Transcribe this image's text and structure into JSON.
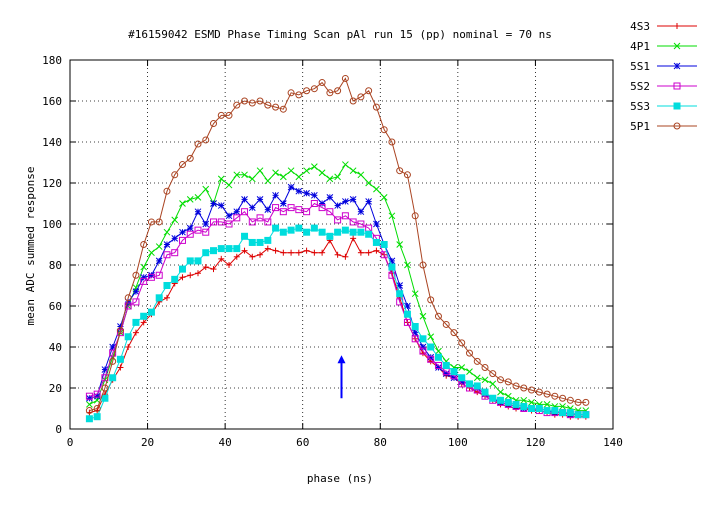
{
  "chart_data": {
    "type": "line",
    "title": "#16159042 ESMD Phase Timing Scan pAl run 15 (pp) nominal = 70 ns",
    "xlabel": "phase (ns)",
    "ylabel": "mean ADC summed response",
    "xlim": [
      0,
      140
    ],
    "ylim": [
      0,
      180
    ],
    "xticks": [
      0,
      20,
      40,
      60,
      80,
      100,
      120,
      140
    ],
    "yticks": [
      0,
      20,
      40,
      60,
      80,
      100,
      120,
      140,
      160,
      180
    ],
    "grid": true,
    "legend_position": "outside-top-right",
    "annotation": {
      "type": "arrow",
      "x": 70,
      "y_from": 15,
      "y_to": 36,
      "color": "#0000ff"
    },
    "x": [
      5,
      7,
      9,
      11,
      13,
      15,
      17,
      19,
      21,
      23,
      25,
      27,
      29,
      31,
      33,
      35,
      37,
      39,
      41,
      43,
      45,
      47,
      49,
      51,
      53,
      55,
      57,
      59,
      61,
      63,
      65,
      67,
      69,
      71,
      73,
      75,
      77,
      79,
      81,
      83,
      85,
      87,
      89,
      91,
      93,
      95,
      97,
      99,
      101,
      103,
      105,
      107,
      109,
      111,
      113,
      115,
      117,
      119,
      121,
      123,
      125,
      127,
      129,
      131,
      133
    ],
    "series": [
      {
        "name": "4S3",
        "marker": "plus",
        "color": "#dd0000",
        "values": [
          8,
          9,
          17,
          24,
          30,
          40,
          47,
          52,
          56,
          62,
          64,
          71,
          74,
          75,
          76,
          79,
          78,
          83,
          80,
          84,
          87,
          84,
          85,
          88,
          87,
          86,
          86,
          86,
          87,
          86,
          86,
          92,
          85,
          84,
          93,
          86,
          86,
          87,
          85,
          76,
          64,
          52,
          44,
          37,
          33,
          30,
          26,
          25,
          22,
          20,
          18,
          16,
          14,
          12,
          11,
          10,
          10,
          9,
          9,
          8,
          7,
          7,
          6,
          6,
          6
        ]
      },
      {
        "name": "4P1",
        "marker": "x",
        "color": "#00dd00",
        "values": [
          12,
          14,
          24,
          35,
          47,
          60,
          69,
          79,
          86,
          89,
          96,
          102,
          110,
          112,
          113,
          117,
          110,
          122,
          119,
          124,
          124,
          122,
          126,
          121,
          125,
          123,
          126,
          123,
          126,
          128,
          125,
          122,
          123,
          129,
          126,
          124,
          120,
          117,
          113,
          104,
          90,
          80,
          66,
          55,
          45,
          38,
          33,
          30,
          30,
          28,
          25,
          24,
          22,
          18,
          16,
          14,
          14,
          13,
          12,
          12,
          11,
          11,
          10,
          9,
          9
        ]
      },
      {
        "name": "5S1",
        "marker": "star",
        "color": "#0000dd",
        "values": [
          15,
          16,
          29,
          40,
          50,
          62,
          67,
          74,
          75,
          82,
          90,
          93,
          96,
          98,
          106,
          100,
          110,
          109,
          104,
          106,
          112,
          108,
          112,
          107,
          114,
          110,
          118,
          116,
          115,
          114,
          110,
          113,
          109,
          111,
          112,
          106,
          111,
          100,
          90,
          82,
          70,
          60,
          47,
          40,
          35,
          30,
          27,
          25,
          23,
          22,
          20,
          17,
          15,
          13,
          12,
          11,
          10,
          10,
          10,
          9,
          8,
          8,
          7,
          7,
          7
        ]
      },
      {
        "name": "5S2",
        "marker": "box",
        "color": "#cc00cc",
        "values": [
          16,
          17,
          25,
          37,
          47,
          60,
          62,
          72,
          74,
          75,
          85,
          86,
          92,
          95,
          97,
          96,
          101,
          101,
          100,
          103,
          106,
          101,
          103,
          101,
          108,
          106,
          108,
          107,
          106,
          110,
          108,
          106,
          102,
          104,
          101,
          100,
          98,
          93,
          85,
          75,
          62,
          52,
          44,
          38,
          34,
          31,
          28,
          26,
          22,
          20,
          19,
          16,
          14,
          13,
          12,
          11,
          10,
          10,
          9,
          8,
          8,
          8,
          7,
          7,
          7
        ]
      },
      {
        "name": "5S3",
        "marker": "filled-box",
        "color": "#00dddd",
        "values": [
          5,
          6,
          15,
          25,
          34,
          45,
          52,
          55,
          57,
          64,
          70,
          73,
          78,
          82,
          82,
          86,
          87,
          88,
          88,
          88,
          94,
          91,
          91,
          92,
          98,
          96,
          97,
          98,
          96,
          98,
          96,
          94,
          96,
          97,
          96,
          96,
          95,
          91,
          90,
          79,
          66,
          56,
          50,
          44,
          40,
          35,
          31,
          28,
          25,
          22,
          21,
          18,
          15,
          14,
          13,
          12,
          11,
          10,
          10,
          9,
          9,
          8,
          8,
          7,
          7
        ]
      },
      {
        "name": "5P1",
        "marker": "circle",
        "color": "#aa4422",
        "values": [
          9,
          10,
          20,
          33,
          48,
          64,
          75,
          90,
          101,
          101,
          116,
          124,
          129,
          132,
          139,
          141,
          149,
          153,
          153,
          158,
          160,
          159,
          160,
          158,
          157,
          156,
          164,
          163,
          165,
          166,
          169,
          164,
          165,
          171,
          160,
          162,
          165,
          157,
          146,
          140,
          126,
          124,
          104,
          80,
          63,
          55,
          51,
          47,
          42,
          37,
          33,
          30,
          27,
          24,
          23,
          21,
          20,
          19,
          18,
          17,
          16,
          15,
          14,
          13,
          13
        ]
      }
    ]
  }
}
